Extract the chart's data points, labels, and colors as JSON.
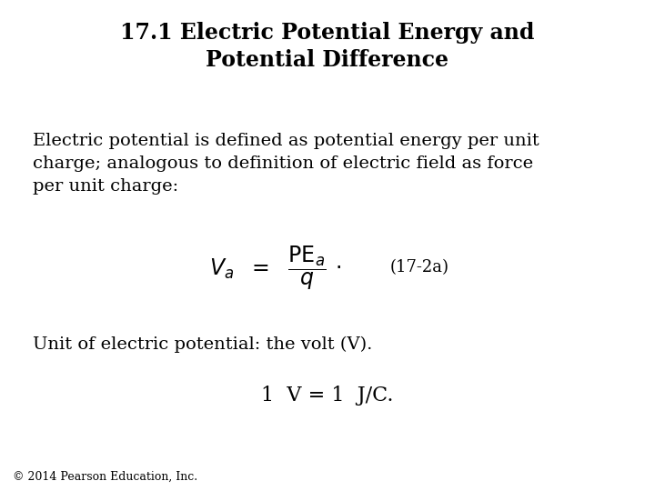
{
  "title_line1": "17.1 Electric Potential Energy and",
  "title_line2": "Potential Difference",
  "body_text": "Electric potential is defined as potential energy per unit\ncharge; analogous to definition of electric field as force\nper unit charge:",
  "equation_label": "(17-2a)",
  "unit_text": "Unit of electric potential: the volt (V).",
  "volt_equation": "1  V = 1  J/C.",
  "copyright": "© 2014 Pearson Education, Inc.",
  "bg_color": "#ffffff",
  "text_color": "#000000",
  "title_fontsize": 17,
  "body_fontsize": 14,
  "eq_fontsize": 16,
  "label_fontsize": 13,
  "small_fontsize": 9
}
